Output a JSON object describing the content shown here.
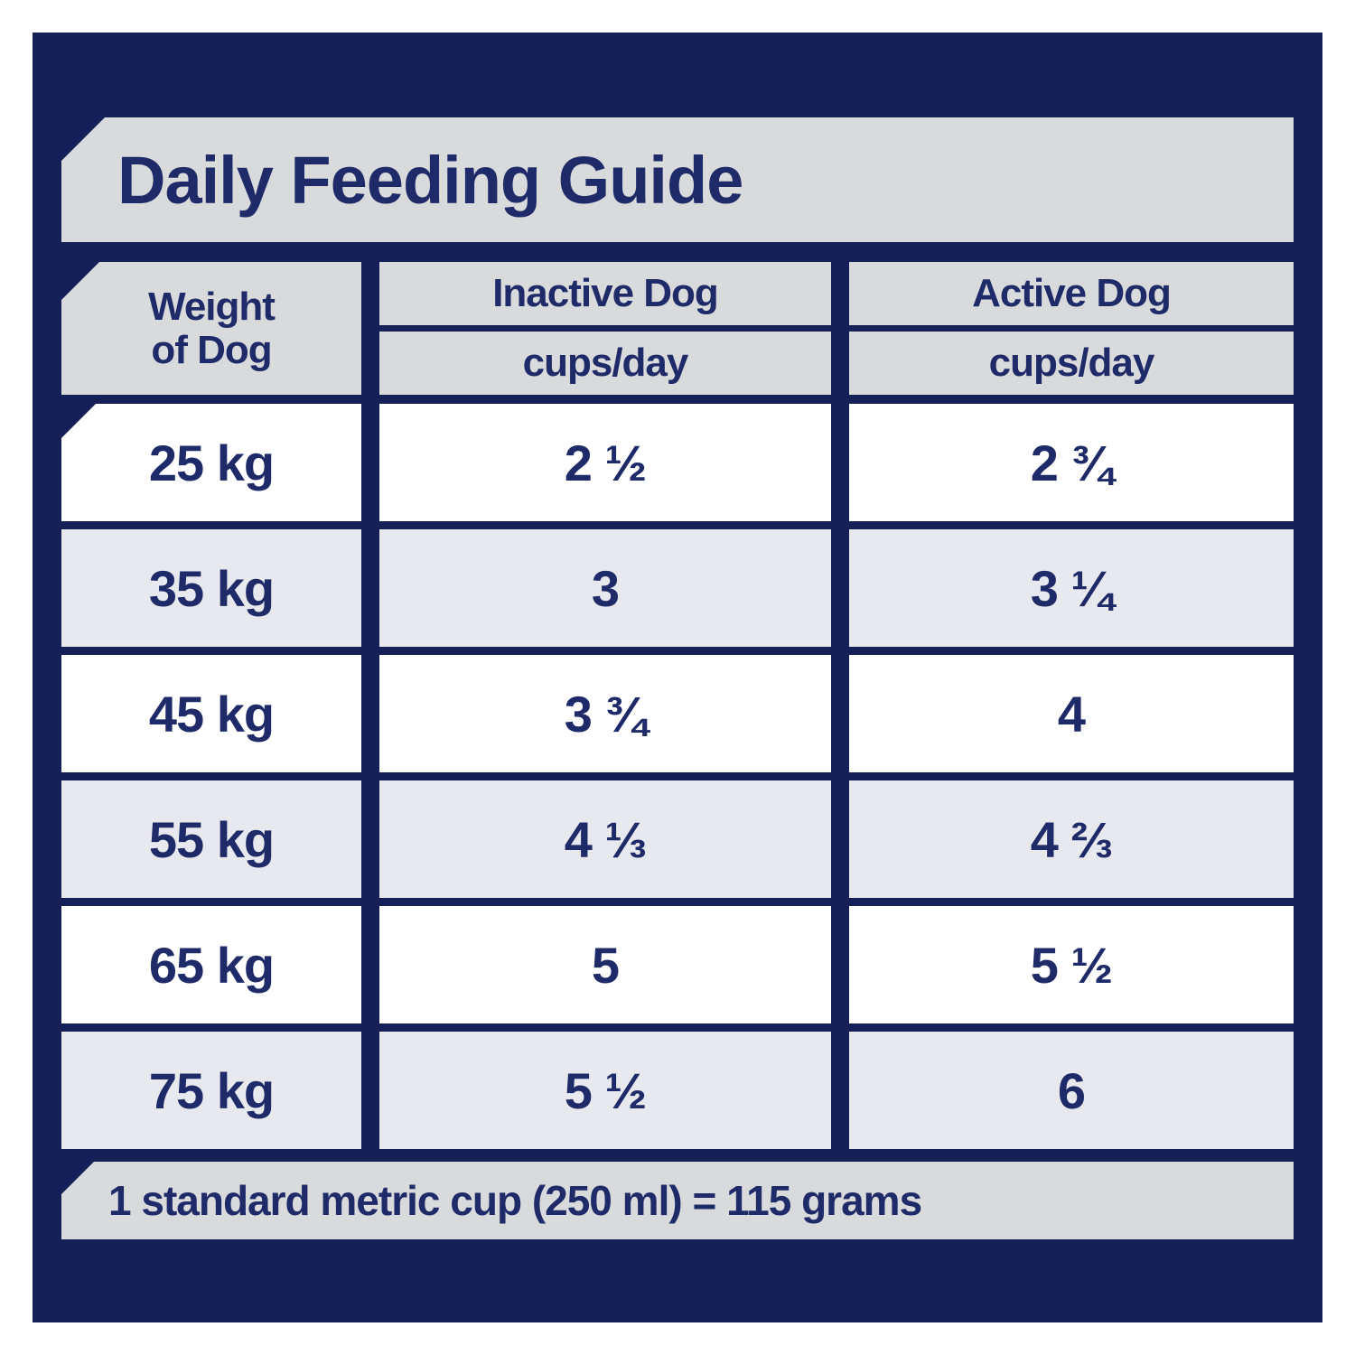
{
  "title": "Daily Feeding Guide",
  "table": {
    "weight_header": {
      "line1": "Weight",
      "line2": "of Dog"
    },
    "columns": [
      {
        "name": "Inactive Dog",
        "unit": "cups/day"
      },
      {
        "name": "Active Dog",
        "unit": "cups/day"
      }
    ],
    "rows": [
      {
        "weight": "25 kg",
        "inactive": "2 ½",
        "active": "2 ¾"
      },
      {
        "weight": "35 kg",
        "inactive": "3",
        "active": "3 ¼"
      },
      {
        "weight": "45 kg",
        "inactive": "3 ¾",
        "active": "4"
      },
      {
        "weight": "55 kg",
        "inactive": "4 ⅓",
        "active": "4 ⅔"
      },
      {
        "weight": "65 kg",
        "inactive": "5",
        "active": "5 ½"
      },
      {
        "weight": "75 kg",
        "inactive": "5 ½",
        "active": "6"
      }
    ]
  },
  "footer": "1 standard metric cup (250 ml) = 115 grams",
  "colors": {
    "background_navy": "#142057",
    "banner_gray": "#d9dadc",
    "alt_row_gray": "#e8e9ee",
    "row_white": "#ffffff",
    "text_navy": "#1f2b68",
    "page_white": "#ffffff"
  },
  "chart_data": {
    "type": "table",
    "title": "Daily Feeding Guide",
    "columns": [
      "Weight of Dog",
      "Inactive Dog (cups/day)",
      "Active Dog (cups/day)"
    ],
    "rows": [
      [
        "25 kg",
        "2 ½",
        "2 ¾"
      ],
      [
        "35 kg",
        "3",
        "3 ¼"
      ],
      [
        "45 kg",
        "3 ¾",
        "4"
      ],
      [
        "55 kg",
        "4 ⅓",
        "4 ⅔"
      ],
      [
        "65 kg",
        "5",
        "5 ½"
      ],
      [
        "75 kg",
        "5 ½",
        "6"
      ]
    ],
    "footnote": "1 standard metric cup (250 ml) = 115 grams",
    "layout_hints": {
      "alternating_row_shading": true,
      "grid_color": "navy",
      "chamfered_corners": "top-left of title, header, first row and footnote bands"
    }
  }
}
